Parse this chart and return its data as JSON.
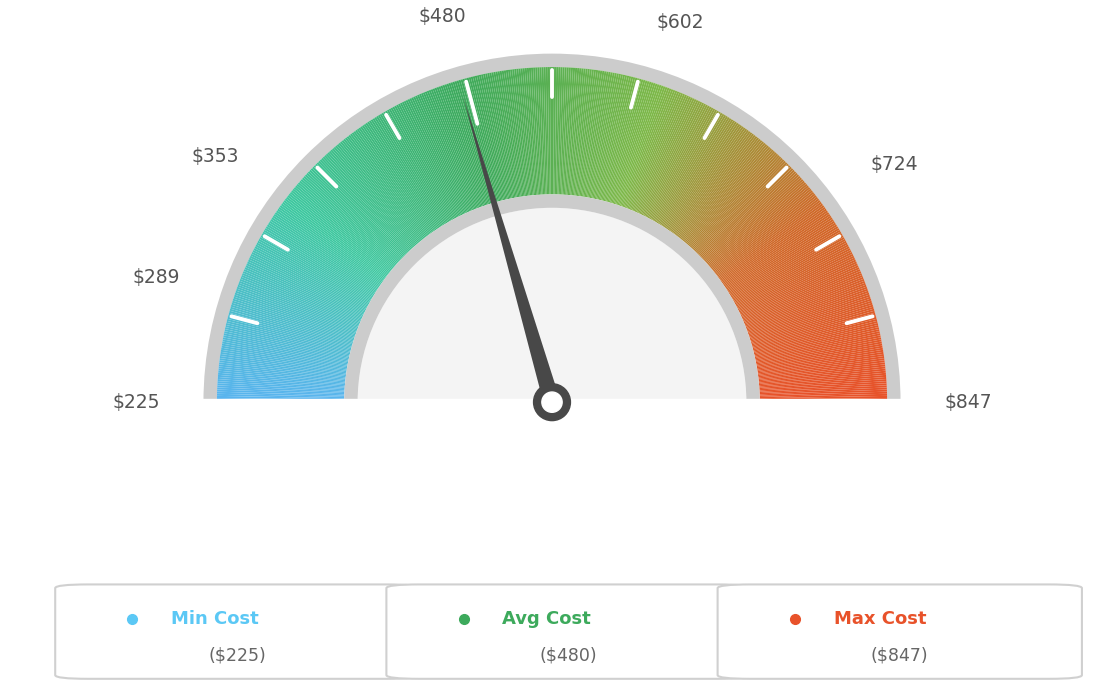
{
  "min_val": 225,
  "max_val": 847,
  "avg_val": 480,
  "label_values": [
    225,
    289,
    353,
    480,
    602,
    724,
    847
  ],
  "label_texts": [
    "$225",
    "$289",
    "$353",
    "$480",
    "$602",
    "$724",
    "$847"
  ],
  "min_cost_label": "Min Cost",
  "avg_cost_label": "Avg Cost",
  "max_cost_label": "Max Cost",
  "min_cost_value": "($225)",
  "avg_cost_value": "($480)",
  "max_cost_value": "($847)",
  "min_color": "#5bc8f5",
  "avg_color": "#3daa5c",
  "max_color": "#e8522a",
  "needle_color": "#484848",
  "background_color": "#ffffff",
  "outer_r": 1.0,
  "inner_r": 0.62,
  "border_thickness": 0.04,
  "color_stops": {
    "225": "#5ab4f0",
    "353": "#45c9a0",
    "480": "#3daa5c",
    "602": "#8db84a",
    "724": "#d97030",
    "847": "#e8522a"
  }
}
